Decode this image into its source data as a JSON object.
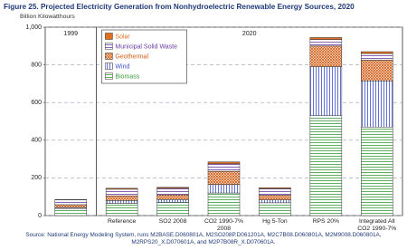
{
  "chart_data": {
    "type": "stacked_bar",
    "title": "Figure 25.  Projected Electricity Generation from Nonhydroelectric Renewable Energy Sources, 2020",
    "subtitle": "Billion Kilowatthours",
    "annotations": [
      "1999",
      "2020"
    ],
    "categories": [
      null,
      "Reference",
      "SO2 2008",
      "CO2 1990-7%\n2008",
      "Hg 5-Ton",
      "RPS 20%",
      "Integrated All\nCO2 1990-7%"
    ],
    "series": [
      {
        "name": "Biomass",
        "color": "#3a9a3a",
        "pattern": "hlines",
        "values": [
          38,
          65,
          70,
          120,
          68,
          530,
          470
        ]
      },
      {
        "name": "Wind",
        "color": "#3a4fc8",
        "pattern": "vlines",
        "values": [
          5,
          15,
          15,
          45,
          15,
          260,
          245
        ]
      },
      {
        "name": "Geothermal",
        "color": "#d05a10",
        "pattern": "cross",
        "values": [
          15,
          25,
          25,
          70,
          25,
          110,
          110
        ]
      },
      {
        "name": "Municipal Solid Waste",
        "color": "#6a3aa0",
        "pattern": "hlines",
        "values": [
          25,
          35,
          35,
          40,
          35,
          35,
          35
        ]
      },
      {
        "name": "Solar",
        "color": "#e07020",
        "pattern": "solid",
        "values": [
          2,
          5,
          5,
          10,
          5,
          10,
          10
        ]
      }
    ],
    "ylim": [
      0,
      1000
    ],
    "yticks": [
      0,
      200,
      400,
      600,
      800,
      {
        "value": 1000,
        "label": "1,000"
      }
    ],
    "grid": true,
    "legend": "top-left",
    "source": "Source: National Energy Modeling System, runs M2BASE.D060801A, M2SO208P.D061201A, M2C7B08.D060801A, M2M9008.D060801A, M2RPS20_X.D070601A, and M2P7B08R_X.D070601A."
  }
}
